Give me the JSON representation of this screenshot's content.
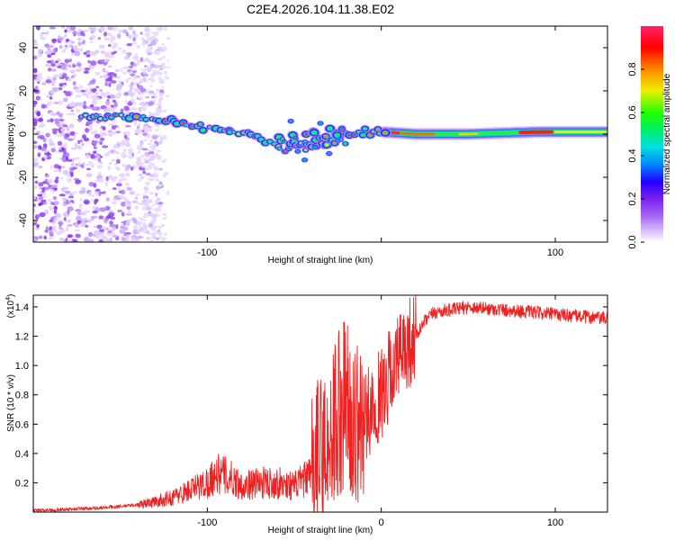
{
  "title": "C2E4.2026.104.11.38.E02",
  "chart_data": [
    {
      "type": "heatmap",
      "name": "spectrogram",
      "title": "C2E4.2026.104.11.38.E02",
      "xlabel": "Height of straight line (km)",
      "ylabel": "Frequency (Hz)",
      "xlim": [
        -200,
        130
      ],
      "ylim": [
        -50,
        50
      ],
      "xticks": [
        -100,
        0,
        100
      ],
      "xtick_labels": [
        "-100",
        "",
        "100"
      ],
      "yticks": [
        -40,
        -20,
        0,
        20,
        40
      ],
      "ytick_labels": [
        "-40",
        "-20",
        "0",
        "20",
        "40"
      ],
      "colorbar": {
        "label": "Normalized spectral amplitude",
        "range": [
          0,
          1
        ],
        "ticks": [
          0.0,
          0.2,
          0.4,
          0.6,
          0.8
        ],
        "tick_labels": [
          "0.0",
          "0.2",
          "0.4",
          "0.6",
          "0.8"
        ]
      },
      "noise_region_x": [
        -200,
        -130
      ],
      "ridge": [
        {
          "x": -170,
          "f": 8
        },
        {
          "x": -140,
          "f": 8
        },
        {
          "x": -120,
          "f": 6
        },
        {
          "x": -100,
          "f": 3
        },
        {
          "x": -80,
          "f": 0
        },
        {
          "x": -60,
          "f": -4
        },
        {
          "x": -45,
          "f": -3
        },
        {
          "x": -30,
          "f": -2
        },
        {
          "x": -15,
          "f": 1
        },
        {
          "x": 0,
          "f": 1
        },
        {
          "x": 20,
          "f": 0
        },
        {
          "x": 50,
          "f": 0
        },
        {
          "x": 90,
          "f": 1
        },
        {
          "x": 130,
          "f": 1
        }
      ]
    },
    {
      "type": "line",
      "name": "snr",
      "xlabel": "Height of straight line (km)",
      "ylabel": "SNR (10 * v/v)",
      "scale_label": "(x10",
      "scale_exponent": "4",
      "line_color": "#ee2222",
      "xlim": [
        -200,
        130
      ],
      "ylim": [
        0,
        1.48
      ],
      "xticks": [
        -100,
        0,
        100
      ],
      "xtick_labels": [
        "-100",
        "0",
        "100"
      ],
      "yticks": [
        0.2,
        0.4,
        0.6,
        0.8,
        1.0,
        1.2,
        1.4
      ],
      "ytick_labels": [
        "0.2",
        "0.4",
        "0.6",
        "0.8",
        "1.0",
        "1.2",
        "1.4"
      ],
      "series": [
        {
          "name": "SNR",
          "x": [
            -200,
            -180,
            -160,
            -140,
            -130,
            -120,
            -110,
            -100,
            -95,
            -90,
            -85,
            -80,
            -70,
            -60,
            -50,
            -40,
            -35,
            -30,
            -25,
            -20,
            -15,
            -10,
            -5,
            0,
            5,
            10,
            15,
            20,
            25,
            30,
            40,
            50,
            60,
            70,
            80,
            90,
            100,
            110,
            120,
            130
          ],
          "y": [
            0.01,
            0.02,
            0.03,
            0.05,
            0.07,
            0.1,
            0.15,
            0.2,
            0.26,
            0.25,
            0.22,
            0.18,
            0.2,
            0.2,
            0.18,
            0.25,
            0.4,
            0.5,
            0.7,
            0.8,
            0.6,
            0.6,
            0.75,
            0.8,
            0.95,
            1.05,
            1.15,
            1.2,
            1.3,
            1.36,
            1.38,
            1.4,
            1.39,
            1.38,
            1.37,
            1.36,
            1.35,
            1.34,
            1.33,
            1.32
          ]
        }
      ]
    }
  ]
}
